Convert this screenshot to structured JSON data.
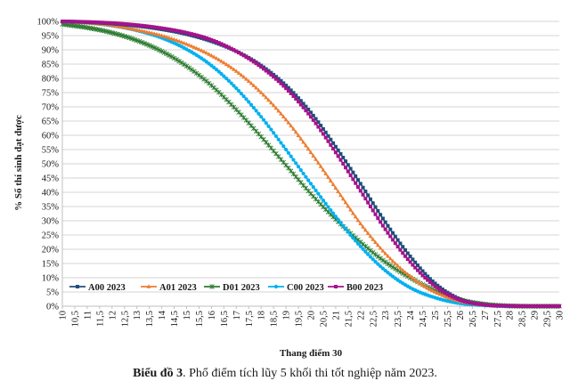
{
  "chart_data": {
    "type": "line",
    "xlabel": "Thang điểm 30",
    "ylabel": "% Số thí sinh đạt được",
    "x_ticks": [
      "10",
      "10,5",
      "11",
      "11,5",
      "12",
      "12,5",
      "13",
      "13,5",
      "14",
      "14,5",
      "15",
      "15,5",
      "16",
      "16,5",
      "17",
      "17,5",
      "18",
      "18,5",
      "19",
      "19,5",
      "20",
      "20,5",
      "21",
      "21,5",
      "22",
      "22,5",
      "23",
      "23,5",
      "24",
      "24,5",
      "25",
      "25,5",
      "26",
      "26,5",
      "27",
      "27,5",
      "28",
      "28,5",
      "29",
      "29,5",
      "30"
    ],
    "y_ticks": [
      "0%",
      "5%",
      "10%",
      "15%",
      "20%",
      "25%",
      "30%",
      "35%",
      "40%",
      "45%",
      "50%",
      "55%",
      "60%",
      "65%",
      "70%",
      "75%",
      "80%",
      "85%",
      "90%",
      "95%",
      "100%"
    ],
    "xlim": [
      10,
      30
    ],
    "ylim": [
      0,
      100
    ],
    "grid": "horizontal",
    "legend_position": "bottom-left inside",
    "x_knots": [
      10,
      11,
      12,
      13,
      14,
      15,
      16,
      17,
      18,
      19,
      20,
      21,
      22,
      23,
      24,
      25,
      26,
      27,
      28,
      29,
      30
    ],
    "series": [
      {
        "name": "A00 2023",
        "color": "#1f4e79",
        "marker": "square",
        "values": [
          100,
          99.7,
          99.2,
          98.4,
          97.2,
          95.5,
          93,
          89.5,
          84.5,
          77.5,
          68,
          56,
          43,
          29.5,
          17.5,
          8,
          2.5,
          0.5,
          0.1,
          0,
          0
        ]
      },
      {
        "name": "A01 2023",
        "color": "#ed7d31",
        "marker": "triangle",
        "values": [
          100,
          99.5,
          98.6,
          97,
          95,
          92,
          88,
          82.5,
          75,
          65.5,
          54,
          41.5,
          29,
          18.5,
          10.5,
          5,
          1.8,
          0.4,
          0.1,
          0,
          0
        ]
      },
      {
        "name": "D01 2023",
        "color": "#2e7d32",
        "marker": "star",
        "values": [
          99,
          97.8,
          96,
          93.3,
          89.5,
          84.3,
          77.5,
          69,
          59.5,
          49.5,
          39.5,
          30.5,
          22.5,
          15.5,
          10,
          5.5,
          2.3,
          0.7,
          0.1,
          0,
          0
        ]
      },
      {
        "name": "C00 2023",
        "color": "#00b0f0",
        "marker": "circle",
        "values": [
          100,
          99.5,
          98.5,
          96.8,
          94.2,
          90.2,
          84.5,
          76.5,
          66.5,
          55,
          43,
          31.5,
          21,
          12.5,
          6.5,
          3,
          1,
          0.3,
          0,
          0,
          0
        ]
      },
      {
        "name": "B00 2023",
        "color": "#a5128c",
        "marker": "square",
        "values": [
          100,
          99.8,
          99.4,
          98.7,
          97.6,
          96,
          93.5,
          89.5,
          84,
          76.5,
          66.5,
          54,
          40.5,
          27,
          15.5,
          7,
          2.2,
          0.5,
          0.1,
          0,
          0
        ]
      }
    ]
  },
  "caption": {
    "bold": "Biểu đồ 3",
    "rest": ". Phổ điểm tích lũy 5 khối thi tốt nghiệp năm 2023."
  }
}
